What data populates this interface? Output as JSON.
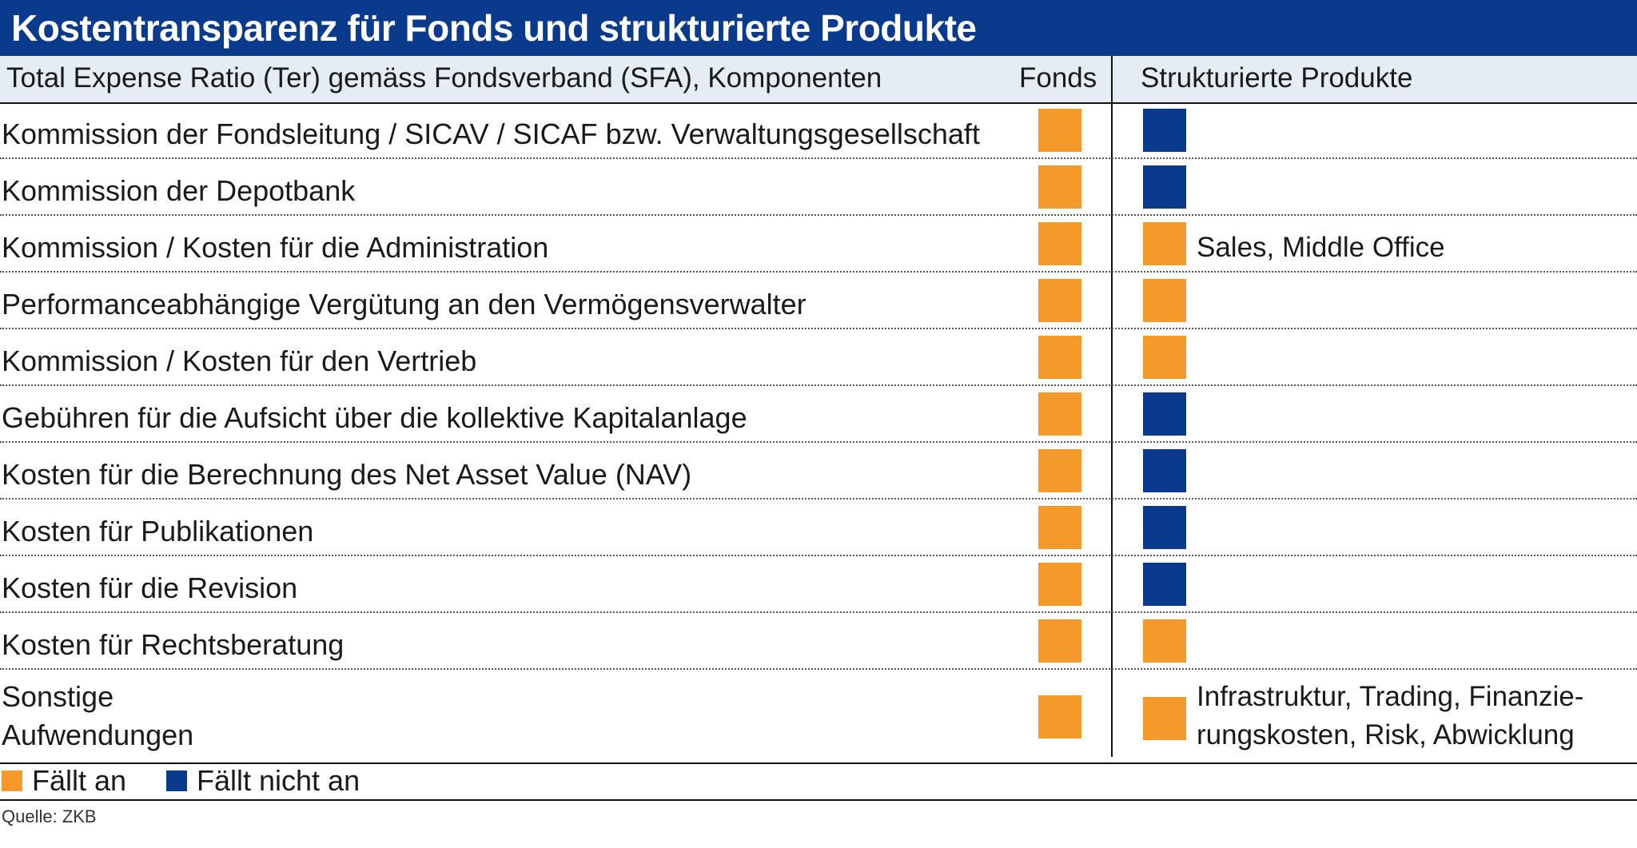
{
  "title": "Kostentransparenz für Fonds und strukturierte Produkte",
  "header": {
    "components": "Total Expense Ratio (Ter) gemäss Fondsverband (SFA), Komponenten",
    "fonds": "Fonds",
    "structured": "Strukturierte Produkte"
  },
  "colors": {
    "applies": "#f39a2a",
    "not_applies": "#0a3a8c",
    "title_bg": "#0a3a8c"
  },
  "rows": [
    {
      "label": "Kommission der Fondsleitung / SICAV / SICAF bzw. Verwaltungsgesellschaft",
      "fonds": "applies",
      "structured": "not_applies",
      "note": ""
    },
    {
      "label": "Kommission der Depotbank",
      "fonds": "applies",
      "structured": "not_applies",
      "note": ""
    },
    {
      "label": "Kommission / Kosten für die Administration",
      "fonds": "applies",
      "structured": "applies",
      "note": "Sales, Middle Office"
    },
    {
      "label": "Performanceabhängige Vergütung an den Vermögensverwalter",
      "fonds": "applies",
      "structured": "applies",
      "note": ""
    },
    {
      "label": "Kommission / Kosten für den Vertrieb",
      "fonds": "applies",
      "structured": "applies",
      "note": ""
    },
    {
      "label": "Gebühren für die Aufsicht über die kollektive Kapitalanlage",
      "fonds": "applies",
      "structured": "not_applies",
      "note": ""
    },
    {
      "label": "Kosten für die Berechnung des Net Asset Value (NAV)",
      "fonds": "applies",
      "structured": "not_applies",
      "note": ""
    },
    {
      "label": "Kosten für Publikationen",
      "fonds": "applies",
      "structured": "not_applies",
      "note": ""
    },
    {
      "label": "Kosten für die Revision",
      "fonds": "applies",
      "structured": "not_applies",
      "note": ""
    },
    {
      "label": "Kosten für Rechtsberatung",
      "fonds": "applies",
      "structured": "applies",
      "note": ""
    },
    {
      "label": "Sonstige",
      "label_line2": "Aufwendungen",
      "fonds": "applies",
      "structured": "applies",
      "note": "Infrastruktur, Trading, Finanzie-",
      "note_line2": "rungskosten, Risk, Abwicklung"
    }
  ],
  "legend": {
    "applies": "Fällt an",
    "not_applies": "Fällt nicht an"
  },
  "source": "Quelle: ZKB"
}
